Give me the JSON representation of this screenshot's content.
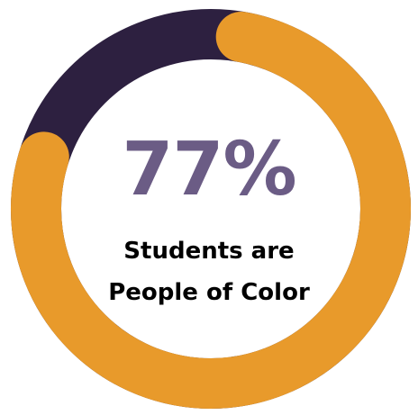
{
  "chart_data": {
    "type": "pie",
    "variant": "donut",
    "percent": 77,
    "segments": [
      {
        "label": "Students are People of Color",
        "value": 77,
        "color": "#e89a2b"
      },
      {
        "label": "",
        "value": 23,
        "color": "#2d2040"
      }
    ],
    "center_value": "77%",
    "caption_lines": [
      "Students are",
      "People of Color"
    ]
  },
  "colors": {
    "primary": "#e89a2b",
    "remainder": "#2d2040",
    "value_text": "#6b5c85",
    "caption_text": "#000000",
    "background": "#ffffff"
  }
}
